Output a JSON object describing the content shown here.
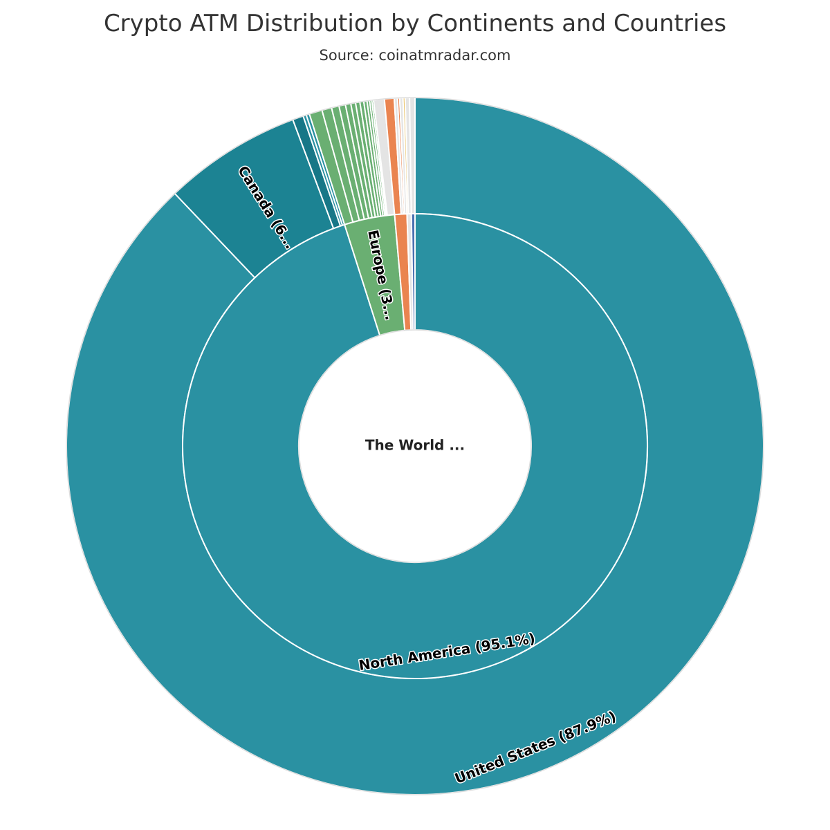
{
  "title": "Crypto ATM Distribution by Continents and Countries",
  "subtitle": "Source: coinatmradar.com",
  "chart_data": {
    "type": "sunburst",
    "center_label": "The World ...",
    "continents": [
      {
        "name": "North America",
        "label": "North America (95.1%)",
        "value": 95.1,
        "color": "#2a91a2",
        "countries": [
          {
            "name": "United States",
            "label": "United States (87.9%)",
            "value": 87.9,
            "color": "#2a91a2"
          },
          {
            "name": "Canada",
            "label": "Canada (6...",
            "value": 6.4,
            "color": "#1c8393"
          },
          {
            "name": "",
            "label": "",
            "value": 0.5,
            "color": "#177787"
          },
          {
            "name": "",
            "label": "",
            "value": 0.15,
            "color": "#2a91a2"
          },
          {
            "name": "",
            "label": "",
            "value": 0.15,
            "color": "#2a91a2"
          }
        ]
      },
      {
        "name": "Europe",
        "label": "Europe (3...",
        "value": 3.5,
        "color": "#6aaf72",
        "countries": [
          {
            "name": "",
            "label": "",
            "value": 0.6,
            "color": "#6aaf72"
          },
          {
            "name": "",
            "label": "",
            "value": 0.45,
            "color": "#6aaf72"
          },
          {
            "name": "",
            "label": "",
            "value": 0.35,
            "color": "#6aaf72"
          },
          {
            "name": "",
            "label": "",
            "value": 0.3,
            "color": "#6aaf72"
          },
          {
            "name": "",
            "label": "",
            "value": 0.25,
            "color": "#6aaf72"
          },
          {
            "name": "",
            "label": "",
            "value": 0.22,
            "color": "#6aaf72"
          },
          {
            "name": "",
            "label": "",
            "value": 0.2,
            "color": "#6aaf72"
          },
          {
            "name": "",
            "label": "",
            "value": 0.18,
            "color": "#6aaf72"
          },
          {
            "name": "",
            "label": "",
            "value": 0.15,
            "color": "#6aaf72"
          },
          {
            "name": "",
            "label": "",
            "value": 0.12,
            "color": "#6aaf72"
          },
          {
            "name": "",
            "label": "",
            "value": 0.1,
            "color": "#6aaf72"
          },
          {
            "name": "",
            "label": "",
            "value": 0.08,
            "color": "#6aaf72"
          },
          {
            "name": "",
            "label": "",
            "value": 0.5,
            "color": "#e4e4e4"
          }
        ]
      },
      {
        "name": "",
        "label": "",
        "value": 0.85,
        "color": "#ea8450",
        "countries": [
          {
            "name": "",
            "label": "",
            "value": 0.45,
            "color": "#ea8450"
          },
          {
            "name": "",
            "label": "",
            "value": 0.15,
            "color": "#e4e4e4"
          },
          {
            "name": "",
            "label": "",
            "value": 0.1,
            "color": "#ea8450"
          },
          {
            "name": "",
            "label": "",
            "value": 0.15,
            "color": "#e4e4e4"
          }
        ]
      },
      {
        "name": "",
        "label": "",
        "value": 0.3,
        "color": "#e4e4e4",
        "countries": [
          {
            "name": "",
            "label": "",
            "value": 0.1,
            "color": "#e9c46a"
          },
          {
            "name": "",
            "label": "",
            "value": 0.2,
            "color": "#e4e4e4"
          }
        ]
      },
      {
        "name": "",
        "label": "",
        "value": 0.25,
        "color": "#4a6fb0",
        "countries": [
          {
            "name": "",
            "label": "",
            "value": 0.25,
            "color": "#e4e4e4"
          }
        ]
      }
    ]
  }
}
